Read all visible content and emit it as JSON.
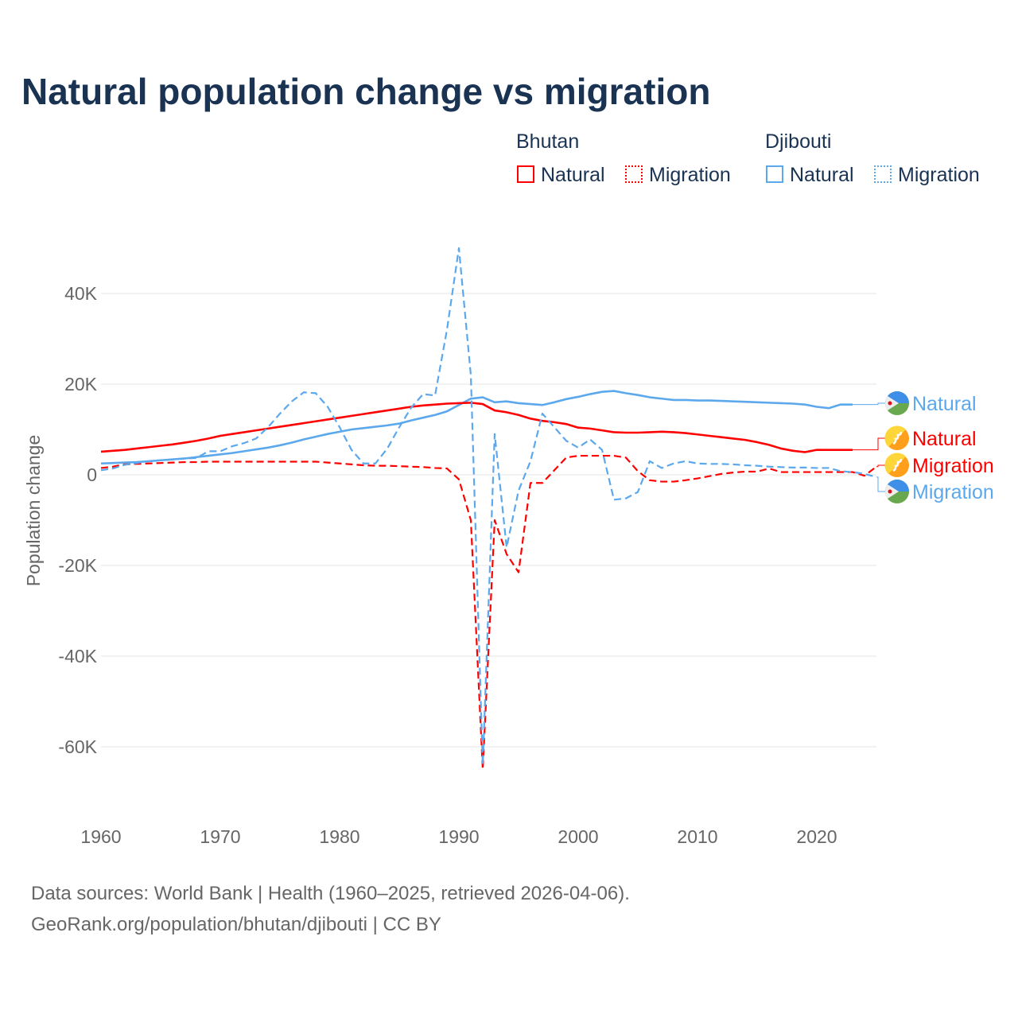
{
  "title": "Natural population change vs migration",
  "legend": {
    "groups": [
      {
        "name": "Bhutan",
        "color": "#ff0000",
        "items": [
          "Natural",
          "Migration"
        ]
      },
      {
        "name": "Djibouti",
        "color": "#5ca8ec",
        "items": [
          "Natural",
          "Migration"
        ]
      }
    ]
  },
  "footer": {
    "line1": "Data sources: World Bank | Health (1960–2025, retrieved 2026-04-06).",
    "line2": "GeoRank.org/population/bhutan/djibouti | CC BY"
  },
  "chart_data": {
    "type": "line",
    "title": "Natural population change vs migration",
    "xlabel": "",
    "ylabel": "Population change",
    "xlim": [
      1960,
      2025
    ],
    "ylim": [
      -65000,
      50000
    ],
    "xticks": [
      1960,
      1970,
      1980,
      1990,
      2000,
      2010,
      2020
    ],
    "xtick_labels": [
      "1960",
      "1970",
      "1980",
      "1990",
      "2000",
      "2010",
      "2020"
    ],
    "yticks": [
      -60000,
      -40000,
      -20000,
      0,
      20000,
      40000
    ],
    "ytick_labels": [
      "-60K",
      "-40K",
      "-20K",
      "0",
      "20K",
      "40K"
    ],
    "grid": true,
    "series": [
      {
        "name": "Djibouti Natural",
        "country": "Djibouti",
        "label": "Natural",
        "color": "#5ca8ec",
        "dash": false,
        "start": 1960,
        "values": [
          2.5,
          2.6,
          2.7,
          2.8,
          3.0,
          3.2,
          3.4,
          3.6,
          3.9,
          4.2,
          4.5,
          4.8,
          5.2,
          5.6,
          6.0,
          6.5,
          7.1,
          7.8,
          8.4,
          9.0,
          9.5,
          10.0,
          10.3,
          10.6,
          10.9,
          11.3,
          12.0,
          12.6,
          13.2,
          14.0,
          15.4,
          16.8,
          17.1,
          16.0,
          16.2,
          15.8,
          15.6,
          15.4,
          16.0,
          16.7,
          17.2,
          17.8,
          18.3,
          18.5,
          18.0,
          17.6,
          17.1,
          16.8,
          16.5,
          16.5,
          16.4,
          16.4,
          16.3,
          16.2,
          16.1,
          16.0,
          15.9,
          15.8,
          15.7,
          15.5,
          15.0,
          14.7,
          15.5,
          15.5
        ]
      },
      {
        "name": "Bhutan Natural",
        "country": "Bhutan",
        "label": "Natural",
        "color": "#ff0000",
        "dash": false,
        "start": 1960,
        "values": [
          5.1,
          5.3,
          5.5,
          5.8,
          6.1,
          6.4,
          6.7,
          7.1,
          7.5,
          8.0,
          8.6,
          9.0,
          9.4,
          9.8,
          10.2,
          10.6,
          11.0,
          11.4,
          11.8,
          12.2,
          12.6,
          13.0,
          13.4,
          13.8,
          14.2,
          14.6,
          15.0,
          15.3,
          15.5,
          15.7,
          15.8,
          15.9,
          15.6,
          14.2,
          13.8,
          13.2,
          12.4,
          11.9,
          11.6,
          11.2,
          10.4,
          10.2,
          9.8,
          9.4,
          9.3,
          9.3,
          9.4,
          9.5,
          9.4,
          9.2,
          8.9,
          8.6,
          8.3,
          8.0,
          7.7,
          7.2,
          6.6,
          5.8,
          5.3,
          5.0,
          5.5,
          5.5,
          5.5,
          5.5
        ]
      },
      {
        "name": "Bhutan Migration",
        "country": "Bhutan",
        "label": "Migration",
        "color": "#ff0000",
        "dash": true,
        "start": 1960,
        "values": [
          1.5,
          1.8,
          2.3,
          2.4,
          2.5,
          2.6,
          2.7,
          2.8,
          2.8,
          2.9,
          2.9,
          2.9,
          2.9,
          2.9,
          2.9,
          2.9,
          2.9,
          2.9,
          2.9,
          2.7,
          2.5,
          2.3,
          2.1,
          2.0,
          2.0,
          1.9,
          1.8,
          1.7,
          1.5,
          1.4,
          -1.0,
          -10,
          -65,
          -10,
          -17.5,
          -21.5,
          -1.8,
          -1.8,
          1.0,
          3.8,
          4.2,
          4.2,
          4.2,
          4.2,
          3.8,
          0.8,
          -1.2,
          -1.5,
          -1.5,
          -1.2,
          -0.8,
          -0.3,
          0.2,
          0.5,
          0.7,
          0.7,
          1.4,
          0.6,
          0.6,
          0.6,
          0.6,
          0.6,
          0.6,
          0.6,
          -0.2,
          1.8
        ]
      },
      {
        "name": "Djibouti Migration",
        "country": "Djibouti",
        "label": "Migration",
        "color": "#5ca8ec",
        "dash": true,
        "start": 1960,
        "values": [
          1.0,
          1.4,
          2.2,
          2.6,
          3.0,
          3.2,
          3.4,
          3.6,
          3.7,
          5.2,
          5.2,
          6.3,
          7.0,
          8.0,
          10.5,
          13.5,
          16.2,
          18.2,
          18.0,
          15.0,
          10.5,
          5.5,
          2.5,
          2.5,
          5.8,
          10.5,
          14.8,
          17.8,
          17.5,
          32,
          50,
          22,
          -64,
          9,
          -16,
          -3.5,
          3,
          13.5,
          10.5,
          7.5,
          6.0,
          7.8,
          5.5,
          -5.5,
          -5.2,
          -3.8,
          3.0,
          1.5,
          2.5,
          3.0,
          2.5,
          2.4,
          2.4,
          2.3,
          2.1,
          2.0,
          1.8,
          1.7,
          1.6,
          1.6,
          1.5,
          1.5,
          0.8,
          0.6,
          0.2,
          -0.5
        ]
      }
    ],
    "value_unit": "thousands"
  }
}
